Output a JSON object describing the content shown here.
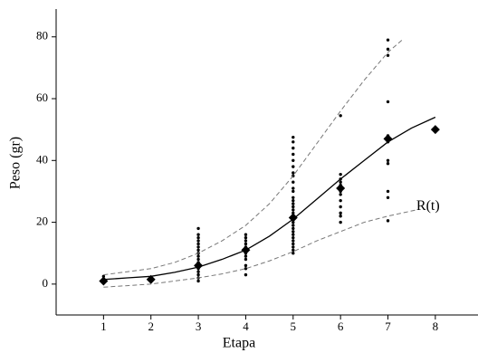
{
  "chart_data": {
    "type": "scatter",
    "x_label": "Etapa",
    "y_label": "Peso (gr)",
    "annotations": [
      {
        "text": "R(t)",
        "x": 7.6,
        "y": 25
      }
    ],
    "xlim": [
      0,
      8.9
    ],
    "xticks": [
      1,
      2,
      3,
      4,
      5,
      6,
      7,
      8
    ],
    "ylim": [
      -10,
      89
    ],
    "yticks": [
      0,
      20,
      40,
      60,
      80
    ],
    "series": [
      {
        "marker": "dot",
        "color": "#000000",
        "x": [
          1,
          1,
          1,
          1,
          2,
          2,
          3,
          3,
          3,
          3,
          3,
          3,
          3,
          3,
          3,
          3,
          3,
          3,
          3,
          3,
          3,
          3,
          3,
          4,
          4,
          4,
          4,
          4,
          4,
          4,
          4,
          4,
          4,
          4,
          4,
          5,
          5,
          5,
          5,
          5,
          5,
          5,
          5,
          5,
          5,
          5,
          5,
          5,
          5,
          5,
          5,
          5,
          5,
          5,
          5,
          5,
          5,
          5,
          5,
          5,
          5,
          5,
          5,
          5,
          5,
          6,
          6,
          6,
          6,
          6,
          6,
          6,
          6,
          6,
          6,
          6,
          6,
          7,
          7,
          7,
          7,
          7,
          7,
          7,
          7,
          7,
          7,
          7,
          7
        ],
        "values": [
          2.5,
          1.5,
          0.5,
          1,
          1.5,
          2,
          18,
          16,
          15,
          14,
          13,
          12,
          11,
          10,
          9,
          8,
          7,
          6,
          5,
          4,
          3,
          2,
          1,
          16,
          15,
          14,
          13,
          12,
          11,
          10,
          9,
          8,
          6,
          5,
          3,
          47.5,
          46,
          44,
          42,
          40,
          38,
          36,
          35,
          33,
          31,
          30,
          28,
          27,
          26,
          25,
          24,
          23,
          22,
          21,
          20,
          19,
          18,
          17,
          16,
          15,
          14,
          13,
          12,
          11,
          10,
          54.5,
          35.5,
          34,
          33,
          32,
          30,
          29,
          27,
          25,
          23,
          22,
          20,
          79,
          76,
          74,
          59,
          48,
          47,
          46,
          40,
          39,
          30,
          28,
          20.5
        ]
      },
      {
        "marker": "diamond",
        "color": "#000000",
        "x": [
          1,
          2,
          3,
          4,
          5,
          6,
          7,
          8
        ],
        "values": [
          1,
          1.5,
          6,
          11,
          21.5,
          31,
          47,
          50
        ]
      },
      {
        "line": "solid",
        "color": "#000000",
        "x": [
          1,
          1.5,
          2,
          2.5,
          3,
          3.5,
          4,
          4.5,
          5,
          5.5,
          6,
          6.5,
          7,
          7.5,
          8
        ],
        "values": [
          1.5,
          2,
          2.5,
          3.8,
          5.5,
          8,
          11,
          15.5,
          21,
          27.5,
          34,
          40,
          46,
          50.5,
          54
        ]
      },
      {
        "line": "dashed",
        "color": "#777777",
        "x": [
          1,
          1.5,
          2,
          2.5,
          3,
          3.5,
          4,
          4.5,
          5,
          5.5,
          6,
          6.5,
          7,
          7.3
        ],
        "values": [
          3,
          4,
          5,
          7,
          10,
          14,
          19,
          26,
          35,
          45.5,
          56,
          66,
          75,
          79
        ]
      },
      {
        "line": "dashed",
        "color": "#777777",
        "x": [
          1,
          1.5,
          2,
          2.5,
          3,
          3.5,
          4,
          4.5,
          5,
          5.5,
          6,
          6.5,
          7,
          7.6
        ],
        "values": [
          -1,
          -0.5,
          0,
          1,
          2,
          3.3,
          5,
          7.5,
          10.5,
          14,
          17,
          20,
          22,
          24
        ]
      }
    ]
  }
}
